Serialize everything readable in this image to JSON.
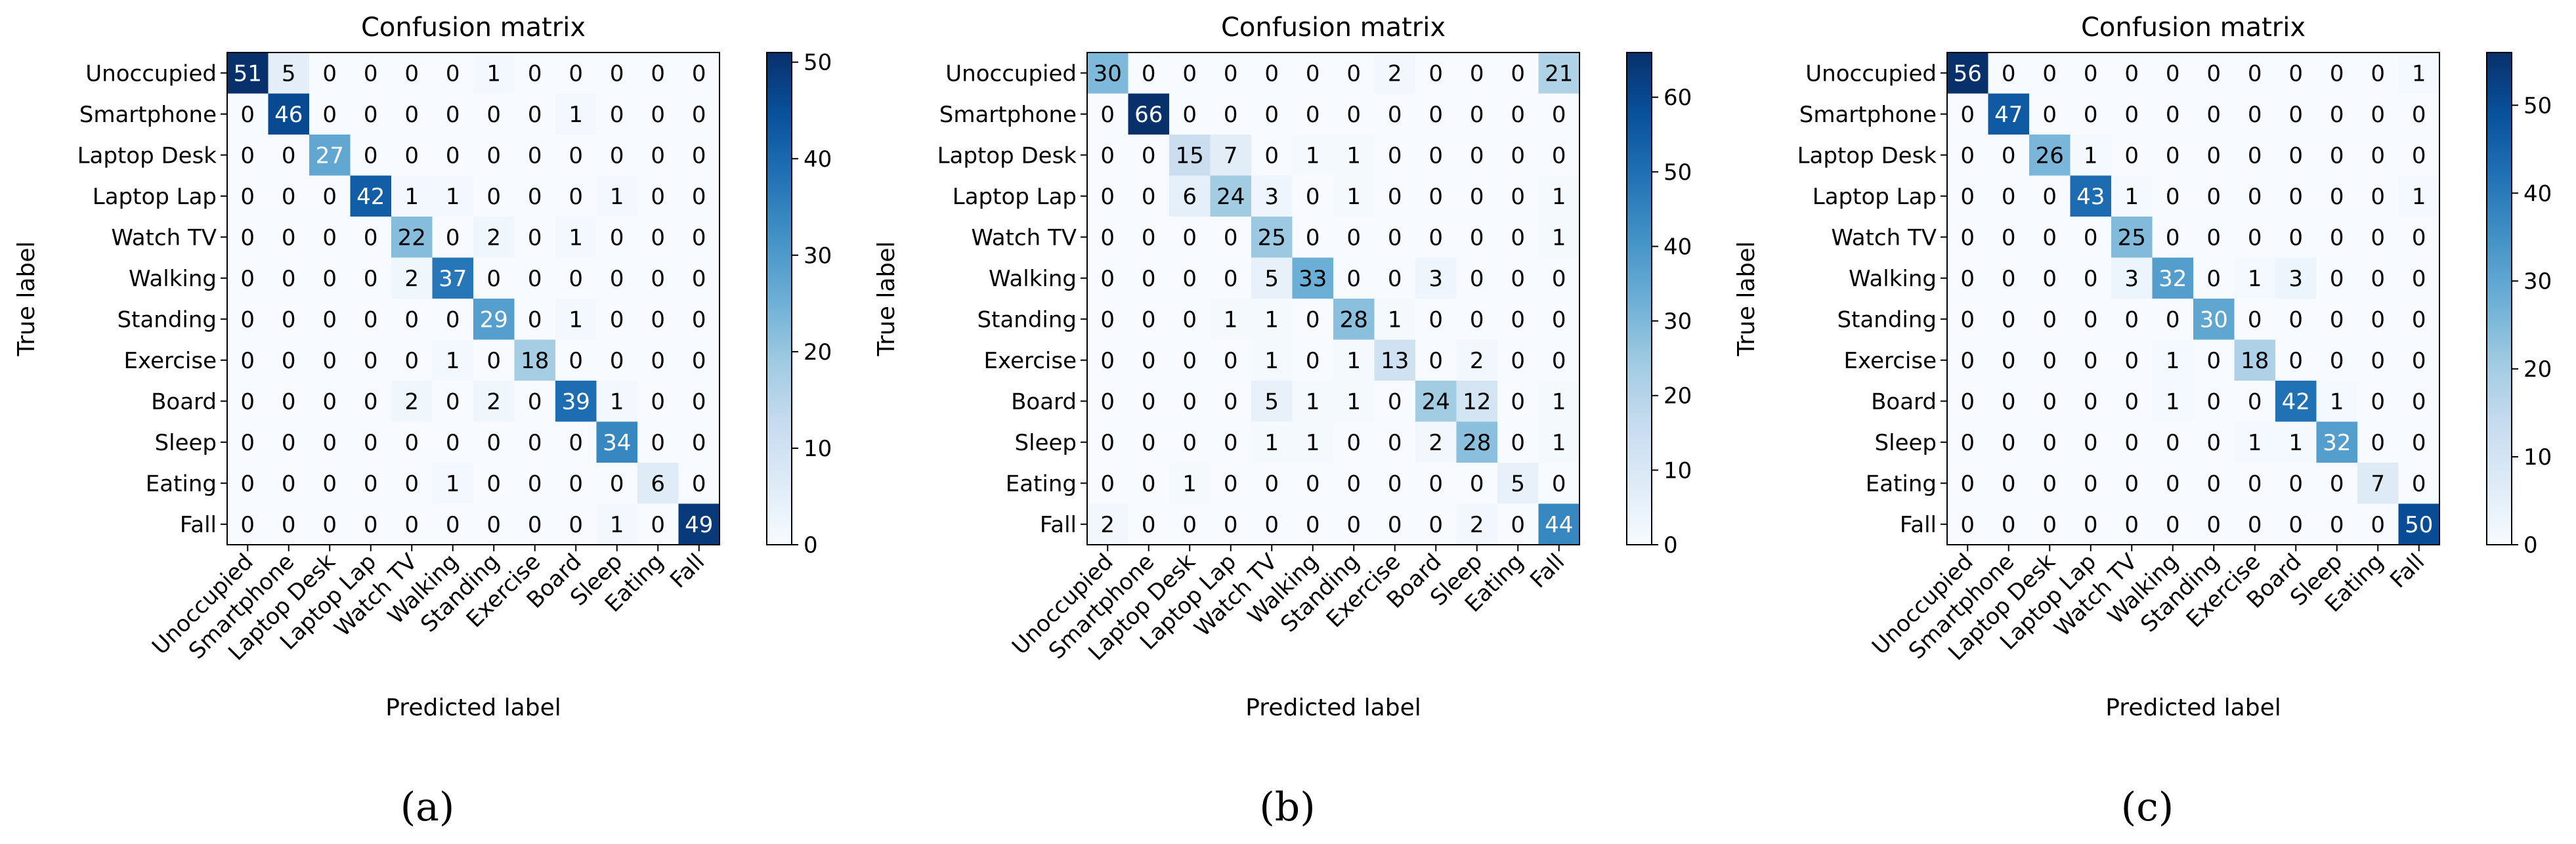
{
  "figure": {
    "panel_labels": [
      "(a)",
      "(b)",
      "(c)"
    ]
  },
  "colors": {
    "cmap": [
      "#f7fbff",
      "#deebf7",
      "#c6dbef",
      "#9ecae1",
      "#6baed6",
      "#4292c6",
      "#2171b5",
      "#08519c",
      "#08306b"
    ],
    "text_dark": "#000000",
    "text_light": "#ffffff"
  },
  "chart_data": [
    {
      "type": "heatmap",
      "title": "Confusion matrix",
      "xlabel": "Predicted label",
      "ylabel": "True label",
      "labels": [
        "Unoccupied",
        "Smartphone",
        "Laptop Desk",
        "Laptop Lap",
        "Watch TV",
        "Walking",
        "Standing",
        "Exercise",
        "Board",
        "Sleep",
        "Eating",
        "Fall"
      ],
      "matrix": [
        [
          51,
          5,
          0,
          0,
          0,
          0,
          1,
          0,
          0,
          0,
          0,
          0
        ],
        [
          0,
          46,
          0,
          0,
          0,
          0,
          0,
          0,
          1,
          0,
          0,
          0
        ],
        [
          0,
          0,
          27,
          0,
          0,
          0,
          0,
          0,
          0,
          0,
          0,
          0
        ],
        [
          0,
          0,
          0,
          42,
          1,
          1,
          0,
          0,
          0,
          1,
          0,
          0
        ],
        [
          0,
          0,
          0,
          0,
          22,
          0,
          2,
          0,
          1,
          0,
          0,
          0
        ],
        [
          0,
          0,
          0,
          0,
          2,
          37,
          0,
          0,
          0,
          0,
          0,
          0
        ],
        [
          0,
          0,
          0,
          0,
          0,
          0,
          29,
          0,
          1,
          0,
          0,
          0
        ],
        [
          0,
          0,
          0,
          0,
          0,
          1,
          0,
          18,
          0,
          0,
          0,
          0
        ],
        [
          0,
          0,
          0,
          0,
          2,
          0,
          2,
          0,
          39,
          1,
          0,
          0
        ],
        [
          0,
          0,
          0,
          0,
          0,
          0,
          0,
          0,
          0,
          34,
          0,
          0
        ],
        [
          0,
          0,
          0,
          0,
          0,
          1,
          0,
          0,
          0,
          0,
          6,
          0
        ],
        [
          0,
          0,
          0,
          0,
          0,
          0,
          0,
          0,
          0,
          1,
          0,
          49
        ]
      ],
      "vmin": 0,
      "vmax": 51,
      "colorbar_ticks": [
        0,
        10,
        20,
        30,
        40,
        50
      ]
    },
    {
      "type": "heatmap",
      "title": "Confusion matrix",
      "xlabel": "Predicted label",
      "ylabel": "True label",
      "labels": [
        "Unoccupied",
        "Smartphone",
        "Laptop Desk",
        "Laptop Lap",
        "Watch TV",
        "Walking",
        "Standing",
        "Exercise",
        "Board",
        "Sleep",
        "Eating",
        "Fall"
      ],
      "matrix": [
        [
          30,
          0,
          0,
          0,
          0,
          0,
          0,
          2,
          0,
          0,
          0,
          21
        ],
        [
          0,
          66,
          0,
          0,
          0,
          0,
          0,
          0,
          0,
          0,
          0,
          0
        ],
        [
          0,
          0,
          15,
          7,
          0,
          1,
          1,
          0,
          0,
          0,
          0,
          0
        ],
        [
          0,
          0,
          6,
          24,
          3,
          0,
          1,
          0,
          0,
          0,
          0,
          1
        ],
        [
          0,
          0,
          0,
          0,
          25,
          0,
          0,
          0,
          0,
          0,
          0,
          1
        ],
        [
          0,
          0,
          0,
          0,
          5,
          33,
          0,
          0,
          3,
          0,
          0,
          0
        ],
        [
          0,
          0,
          0,
          1,
          1,
          0,
          28,
          1,
          0,
          0,
          0,
          0
        ],
        [
          0,
          0,
          0,
          0,
          1,
          0,
          1,
          13,
          0,
          2,
          0,
          0
        ],
        [
          0,
          0,
          0,
          0,
          5,
          1,
          1,
          0,
          24,
          12,
          0,
          1
        ],
        [
          0,
          0,
          0,
          0,
          1,
          1,
          0,
          0,
          2,
          28,
          0,
          1
        ],
        [
          0,
          0,
          1,
          0,
          0,
          0,
          0,
          0,
          0,
          0,
          5,
          0
        ],
        [
          2,
          0,
          0,
          0,
          0,
          0,
          0,
          0,
          0,
          2,
          0,
          44
        ]
      ],
      "vmin": 0,
      "vmax": 66,
      "colorbar_ticks": [
        0,
        10,
        20,
        30,
        40,
        50,
        60
      ]
    },
    {
      "type": "heatmap",
      "title": "Confusion matrix",
      "xlabel": "Predicted label",
      "ylabel": "True label",
      "labels": [
        "Unoccupied",
        "Smartphone",
        "Laptop Desk",
        "Laptop Lap",
        "Watch TV",
        "Walking",
        "Standing",
        "Exercise",
        "Board",
        "Sleep",
        "Eating",
        "Fall"
      ],
      "matrix": [
        [
          56,
          0,
          0,
          0,
          0,
          0,
          0,
          0,
          0,
          0,
          0,
          1
        ],
        [
          0,
          47,
          0,
          0,
          0,
          0,
          0,
          0,
          0,
          0,
          0,
          0
        ],
        [
          0,
          0,
          26,
          1,
          0,
          0,
          0,
          0,
          0,
          0,
          0,
          0
        ],
        [
          0,
          0,
          0,
          43,
          1,
          0,
          0,
          0,
          0,
          0,
          0,
          1
        ],
        [
          0,
          0,
          0,
          0,
          25,
          0,
          0,
          0,
          0,
          0,
          0,
          0
        ],
        [
          0,
          0,
          0,
          0,
          3,
          32,
          0,
          1,
          3,
          0,
          0,
          0
        ],
        [
          0,
          0,
          0,
          0,
          0,
          0,
          30,
          0,
          0,
          0,
          0,
          0
        ],
        [
          0,
          0,
          0,
          0,
          0,
          1,
          0,
          18,
          0,
          0,
          0,
          0
        ],
        [
          0,
          0,
          0,
          0,
          0,
          1,
          0,
          0,
          42,
          1,
          0,
          0
        ],
        [
          0,
          0,
          0,
          0,
          0,
          0,
          0,
          1,
          1,
          32,
          0,
          0
        ],
        [
          0,
          0,
          0,
          0,
          0,
          0,
          0,
          0,
          0,
          0,
          7,
          0
        ],
        [
          0,
          0,
          0,
          0,
          0,
          0,
          0,
          0,
          0,
          0,
          0,
          50
        ]
      ],
      "vmin": 0,
      "vmax": 56,
      "colorbar_ticks": [
        0,
        10,
        20,
        30,
        40,
        50
      ]
    }
  ]
}
